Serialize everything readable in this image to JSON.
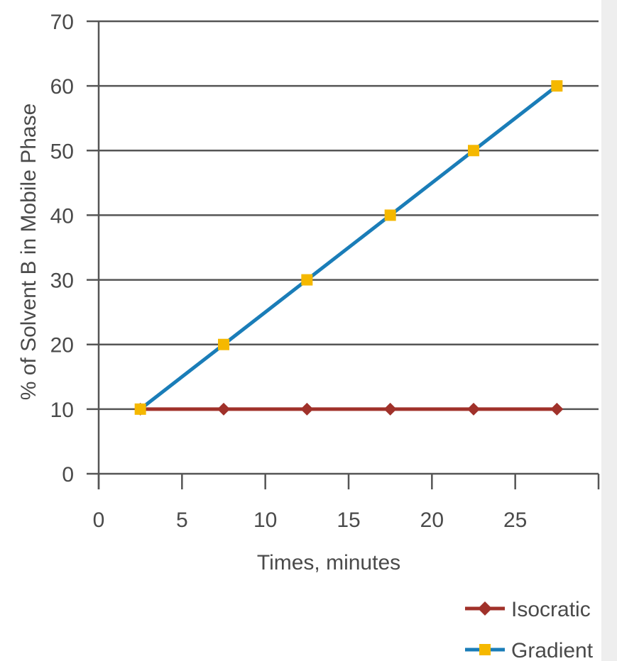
{
  "chart_data": {
    "type": "line",
    "xlabel": "Times, minutes",
    "ylabel": "% of Solvent B in Mobile Phase",
    "xlim": [
      0,
      30
    ],
    "ylim": [
      0,
      70
    ],
    "x_ticks": [
      0,
      5,
      10,
      15,
      20,
      25
    ],
    "y_ticks": [
      0,
      10,
      20,
      30,
      40,
      50,
      60,
      70
    ],
    "grid": "horizontal",
    "legend_position": "bottom-right",
    "series": [
      {
        "name": "Isocratic",
        "color": "#a0312a",
        "marker": "diamond",
        "x": [
          2.5,
          7.5,
          12.5,
          17.5,
          22.5,
          27.5
        ],
        "y": [
          10,
          10,
          10,
          10,
          10,
          10
        ]
      },
      {
        "name": "Gradient",
        "color": "#1a7db8",
        "marker_color": "#f5b800",
        "marker": "square",
        "x": [
          2.5,
          7.5,
          12.5,
          17.5,
          22.5,
          27.5
        ],
        "y": [
          10,
          20,
          30,
          40,
          50,
          60
        ]
      }
    ]
  }
}
